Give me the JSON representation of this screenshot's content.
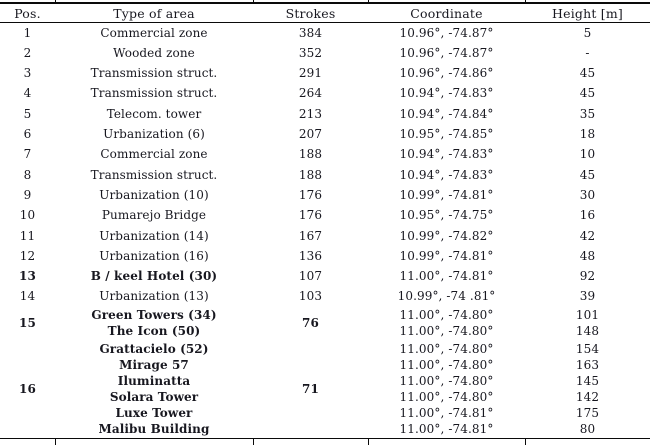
{
  "page": {
    "background": "#ffffff",
    "text_color": "#17171f",
    "rule_color": "#0a0a0a"
  },
  "table": {
    "headers": [
      "Pos.",
      "Type of area",
      "Strokes",
      "Coordinate",
      "Height [m]"
    ],
    "rows": [
      {
        "pos": "1",
        "bold_label": false,
        "bold_strokes": false,
        "type": [
          "Commercial zone"
        ],
        "strokes": "384",
        "coords": [
          "10.96°, -74.87°"
        ],
        "heights": [
          "5"
        ]
      },
      {
        "pos": "2",
        "bold_label": false,
        "bold_strokes": false,
        "type": [
          "Wooded zone"
        ],
        "strokes": "352",
        "coords": [
          "10.96°, -74.87°"
        ],
        "heights": [
          "-"
        ]
      },
      {
        "pos": "3",
        "bold_label": false,
        "bold_strokes": false,
        "type": [
          "Transmission struct."
        ],
        "strokes": "291",
        "coords": [
          "10.96°, -74.86°"
        ],
        "heights": [
          "45"
        ]
      },
      {
        "pos": "4",
        "bold_label": false,
        "bold_strokes": false,
        "type": [
          "Transmission struct."
        ],
        "strokes": "264",
        "coords": [
          "10.94°, -74.83°"
        ],
        "heights": [
          "45"
        ]
      },
      {
        "pos": "5",
        "bold_label": false,
        "bold_strokes": false,
        "type": [
          "Telecom. tower"
        ],
        "strokes": "213",
        "coords": [
          "10.94°, -74.84°"
        ],
        "heights": [
          "35"
        ]
      },
      {
        "pos": "6",
        "bold_label": false,
        "bold_strokes": false,
        "type": [
          "Urbanization (6)"
        ],
        "strokes": "207",
        "coords": [
          "10.95°, -74.85°"
        ],
        "heights": [
          "18"
        ]
      },
      {
        "pos": "7",
        "bold_label": false,
        "bold_strokes": false,
        "type": [
          "Commercial zone"
        ],
        "strokes": "188",
        "coords": [
          "10.94°, -74.83°"
        ],
        "heights": [
          "10"
        ]
      },
      {
        "pos": "8",
        "bold_label": false,
        "bold_strokes": false,
        "type": [
          "Transmission struct."
        ],
        "strokes": "188",
        "coords": [
          "10.94°, -74.83°"
        ],
        "heights": [
          "45"
        ]
      },
      {
        "pos": "9",
        "bold_label": false,
        "bold_strokes": false,
        "type": [
          "Urbanization (10)"
        ],
        "strokes": "176",
        "coords": [
          "10.99°, -74.81°"
        ],
        "heights": [
          "30"
        ]
      },
      {
        "pos": "10",
        "bold_label": false,
        "bold_strokes": false,
        "type": [
          "Pumarejo Bridge"
        ],
        "strokes": "176",
        "coords": [
          "10.95°, -74.75°"
        ],
        "heights": [
          "16"
        ]
      },
      {
        "pos": "11",
        "bold_label": false,
        "bold_strokes": false,
        "type": [
          "Urbanization (14)"
        ],
        "strokes": "167",
        "coords": [
          "10.99°, -74.82°"
        ],
        "heights": [
          "42"
        ]
      },
      {
        "pos": "12",
        "bold_label": false,
        "bold_strokes": false,
        "type": [
          "Urbanization (16)"
        ],
        "strokes": "136",
        "coords": [
          "10.99°, -74.81°"
        ],
        "heights": [
          "48"
        ]
      },
      {
        "pos": "13",
        "bold_label": true,
        "bold_strokes": false,
        "type": [
          "B / keel Hotel (30)"
        ],
        "strokes": "107",
        "coords": [
          "11.00°, -74.81°"
        ],
        "heights": [
          "92"
        ]
      },
      {
        "pos": "14",
        "bold_label": false,
        "bold_strokes": false,
        "type": [
          "Urbanization (13)"
        ],
        "strokes": "103",
        "coords": [
          "10.99°, -74 .81°"
        ],
        "heights": [
          "39"
        ]
      },
      {
        "pos": "15",
        "bold_label": true,
        "bold_strokes": true,
        "type": [
          "Green Towers (34)",
          "The Icon (50)"
        ],
        "strokes": "76",
        "coords": [
          "11.00°, -74.80°",
          "11.00°, -74.80°"
        ],
        "heights": [
          "101",
          "148"
        ]
      },
      {
        "pos": "16",
        "bold_label": true,
        "bold_strokes": true,
        "type": [
          "Grattacielo (52)",
          "Mirage 57",
          "Iluminatta",
          "Solara Tower",
          "Luxe Tower",
          "Malibu Building"
        ],
        "strokes": "71",
        "coords": [
          "11.00°, -74.80°",
          "11.00°, -74.80°",
          "11.00°, -74.80°",
          "11.00°, -74.80°",
          "11.00°, -74.81°",
          "11.00°, -74.81°"
        ],
        "heights": [
          "154",
          "163",
          "145",
          "142",
          "175",
          "80"
        ]
      }
    ]
  }
}
